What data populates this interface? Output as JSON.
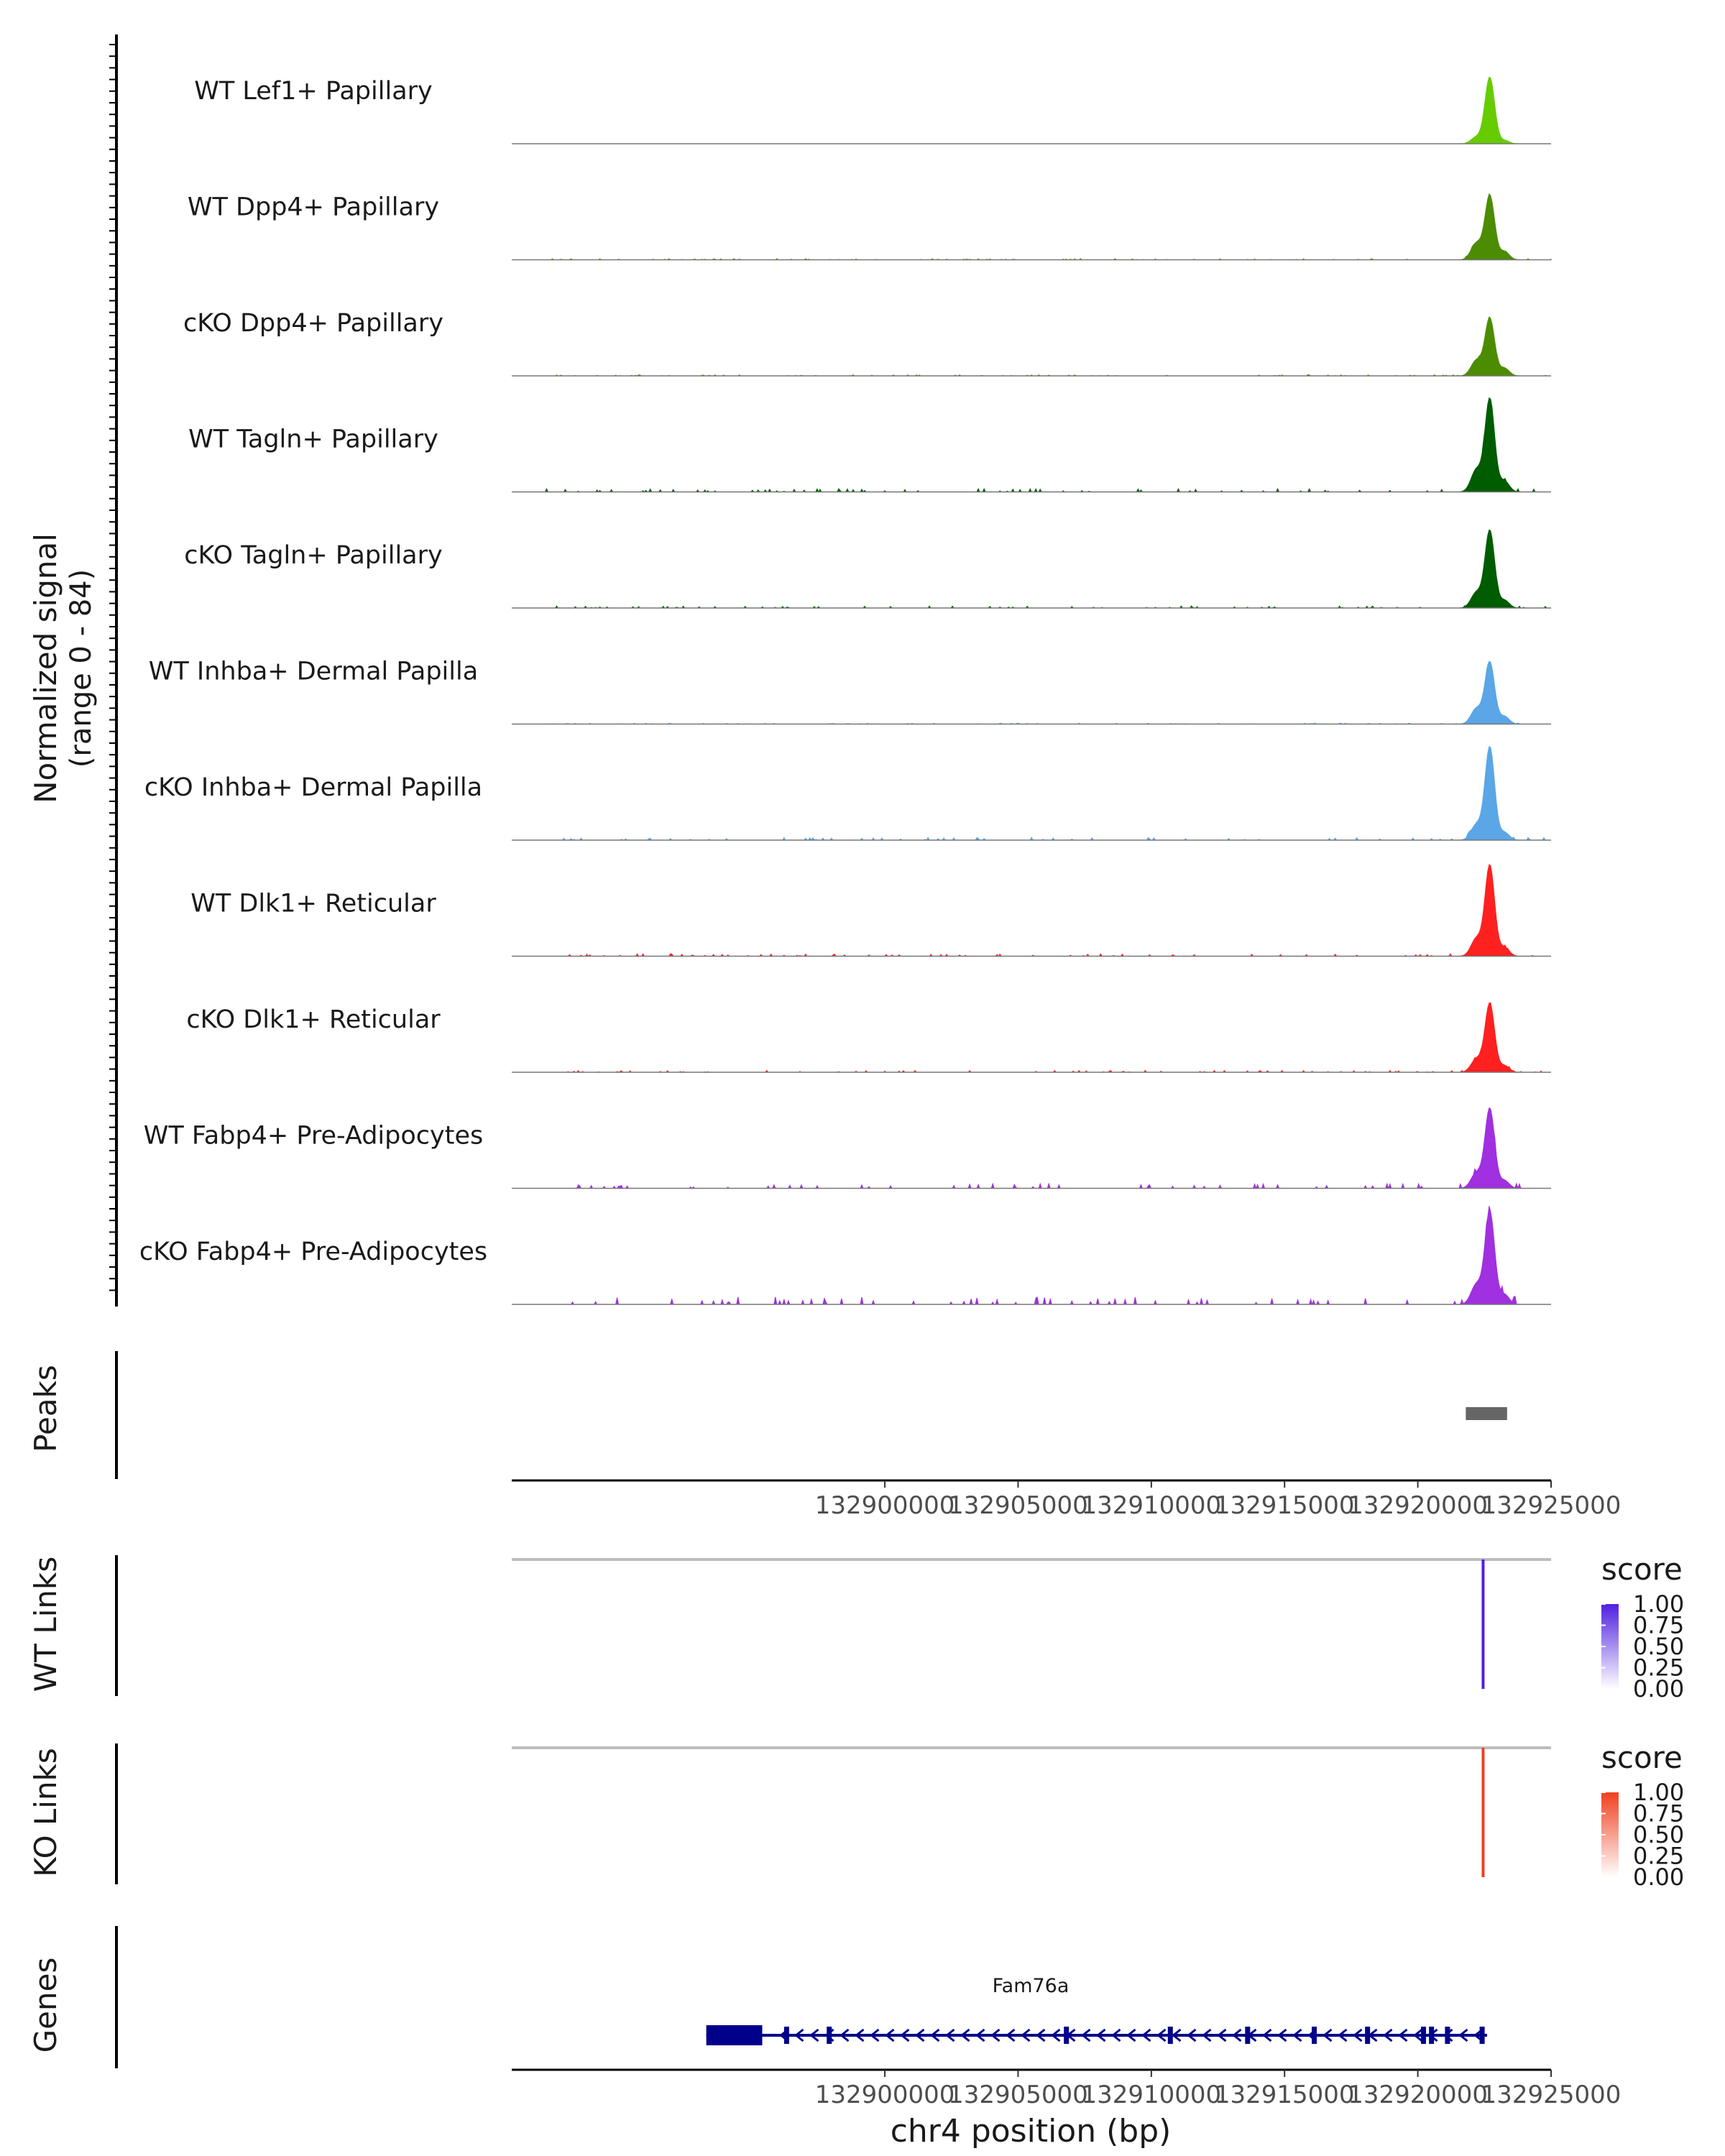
{
  "chart_data": {
    "type": "area",
    "genome": "chr4",
    "x_range_bp": [
      132886000,
      132925000
    ],
    "y_axis": {
      "label": "Normalized signal",
      "range_label": "(range 0 - 84)",
      "ylim": [
        0,
        84
      ]
    },
    "tracks": [
      {
        "name": "WT Lef1+ Papillary",
        "color": "#66CC00",
        "peak_height": 60,
        "shoulder_height": 6,
        "noise": 0
      },
      {
        "name": "WT Dpp4+ Papillary",
        "color": "#4C8C00",
        "peak_height": 58,
        "shoulder_height": 15,
        "noise": 0.5
      },
      {
        "name": "cKO Dpp4+ Papillary",
        "color": "#4C8C00",
        "peak_height": 52,
        "shoulder_height": 14,
        "noise": 0.5
      },
      {
        "name": "WT Tagln+ Papillary",
        "color": "#005C00",
        "peak_height": 84,
        "shoulder_height": 20,
        "noise": 1.4
      },
      {
        "name": "cKO Tagln+ Papillary",
        "color": "#005C00",
        "peak_height": 70,
        "shoulder_height": 14,
        "noise": 0.9
      },
      {
        "name": "WT Inhba+ Dermal Papilla",
        "color": "#5AA6E6",
        "peak_height": 56,
        "shoulder_height": 14,
        "noise": 0.4
      },
      {
        "name": "cKO Inhba+ Dermal Papilla",
        "color": "#5AA6E6",
        "peak_height": 84,
        "shoulder_height": 14,
        "noise": 1.2
      },
      {
        "name": "WT Dlk1+ Reticular",
        "color": "#FF2020",
        "peak_height": 82,
        "shoulder_height": 16,
        "noise": 1.0
      },
      {
        "name": "cKO Dlk1+ Reticular",
        "color": "#FF2020",
        "peak_height": 62,
        "shoulder_height": 12,
        "noise": 0.8
      },
      {
        "name": "WT Fabp4+ Pre-Adipocytes",
        "color": "#A030E0",
        "peak_height": 72,
        "shoulder_height": 14,
        "noise": 2.0
      },
      {
        "name": "cKO Fabp4+ Pre-Adipocytes",
        "color": "#A030E0",
        "peak_height": 84,
        "shoulder_height": 18,
        "noise": 3.2
      }
    ],
    "peak_center_bp": 132922700,
    "peaks": {
      "label": "Peaks",
      "regions": [
        [
          132921800,
          132923350
        ]
      ],
      "color": "#666666"
    },
    "x_ticks": [
      132900000,
      132905000,
      132910000,
      132915000,
      132920000,
      132925000
    ],
    "x_tick_labels": [
      "132900000",
      "132905000",
      "132910000",
      "132915000",
      "132920000",
      "132925000"
    ],
    "links": [
      {
        "label": "WT Links",
        "position_bp": 132922450,
        "score": 1.0,
        "color_high": "#5020E0",
        "color_low": "#FFFFFF",
        "legend_title": "score",
        "legend_labels": [
          "1.00",
          "0.75",
          "0.50",
          "0.25",
          "0.00"
        ]
      },
      {
        "label": "KO Links",
        "position_bp": 132922450,
        "score": 1.0,
        "color_high": "#F04020",
        "color_low": "#FFFFFF",
        "legend_title": "score",
        "legend_labels": [
          "1.00",
          "0.75",
          "0.50",
          "0.25",
          "0.00"
        ]
      }
    ],
    "genes": {
      "label": "Genes",
      "name": "Fam76a",
      "start_bp": 132893300,
      "end_bp": 132922600,
      "strand": "-",
      "color": "#00008B",
      "thick_start_bp": 132893300,
      "thick_end_bp": 132895400,
      "exons_bp": [
        132896300,
        132897900,
        132906800,
        132910700,
        132913600,
        132916100,
        132918100,
        132920200,
        132920500,
        132921100,
        132922400
      ]
    },
    "xlabel": "chr4 position (bp)"
  }
}
